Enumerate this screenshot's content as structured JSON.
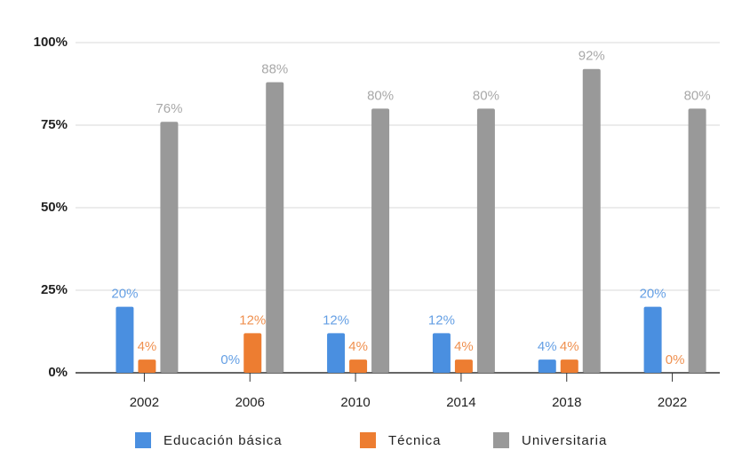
{
  "chart_data": {
    "type": "bar",
    "categories": [
      "2002",
      "2006",
      "2010",
      "2014",
      "2018",
      "2022"
    ],
    "series": [
      {
        "name": "Educación básica",
        "color": "#4a8fe0",
        "values": [
          20,
          0,
          12,
          12,
          4,
          20
        ],
        "value_labels": [
          "20%",
          "0%",
          "12%",
          "12%",
          "4%",
          "20%"
        ]
      },
      {
        "name": "Técnica",
        "color": "#ed7d31",
        "values": [
          4,
          12,
          4,
          4,
          4,
          0
        ],
        "value_labels": [
          "4%",
          "12%",
          "4%",
          "4%",
          "4%",
          "0%"
        ]
      },
      {
        "name": "Universitaria",
        "color": "#999999",
        "values": [
          76,
          88,
          80,
          80,
          92,
          80
        ],
        "value_labels": [
          "76%",
          "88%",
          "80%",
          "80%",
          "92%",
          "80%"
        ]
      }
    ],
    "ylim": [
      0,
      100
    ],
    "yticks": [
      {
        "value": 0,
        "label": "0%"
      },
      {
        "value": 25,
        "label": "25%"
      },
      {
        "value": 50,
        "label": "50%"
      },
      {
        "value": 75,
        "label": "75%"
      },
      {
        "value": 100,
        "label": "100%"
      }
    ],
    "grid": true,
    "legend": "bottom"
  }
}
